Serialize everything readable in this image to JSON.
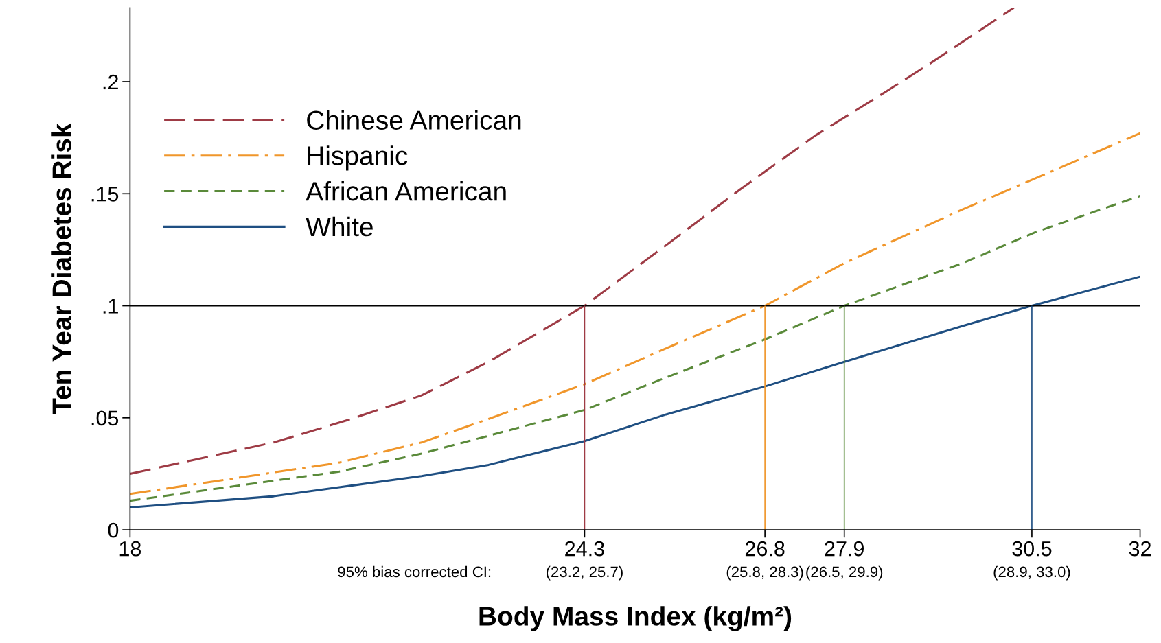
{
  "chart_data": {
    "type": "line",
    "xlabel": "Body Mass Index (kg/m²)",
    "ylabel": "Ten Year Diabetes Risk",
    "xlim": [
      18,
      32
    ],
    "xticks": [
      18,
      24.3,
      26.8,
      27.9,
      30.5,
      32
    ],
    "ylim": [
      0,
      0.233
    ],
    "yticks": [
      0,
      {
        "value": 0.05,
        "label": ".05"
      },
      {
        "value": 0.1,
        "label": ".1"
      },
      {
        "value": 0.15,
        "label": ".15"
      },
      {
        "value": 0.2,
        "label": ".2"
      }
    ],
    "grid": false,
    "legend": "top left",
    "marker": "none",
    "series": [
      {
        "name": "Chinese American",
        "color": "#9e3b45",
        "line_style": "longdash",
        "x": [
          18,
          19.99,
          21.02,
          22.04,
          22.97,
          24.3,
          25.43,
          26.46,
          27.5,
          28.5,
          29.13,
          30.25
        ],
        "values": [
          0.025,
          0.039,
          0.049,
          0.06,
          0.075,
          0.1,
          0.127,
          0.152,
          0.176,
          0.196,
          0.209,
          0.233
        ]
      },
      {
        "name": "Hispanic",
        "color": "#f0962b",
        "line_style": "dashdot",
        "x": [
          18,
          20.9,
          22.04,
          22.97,
          24.3,
          25.43,
          26.8,
          27.9,
          29.54,
          30.56,
          32
        ],
        "values": [
          0.016,
          0.03,
          0.039,
          0.0495,
          0.065,
          0.081,
          0.1,
          0.119,
          0.143,
          0.157,
          0.177
        ]
      },
      {
        "name": "African American",
        "color": "#5a8a3a",
        "line_style": "dashed",
        "x": [
          18,
          20.9,
          22.04,
          22.97,
          24.3,
          25.43,
          26.8,
          27.9,
          29.54,
          30.56,
          32
        ],
        "values": [
          0.013,
          0.026,
          0.034,
          0.042,
          0.0535,
          0.068,
          0.085,
          0.1,
          0.119,
          0.133,
          0.149
        ]
      },
      {
        "name": "White",
        "color": "#1f4f82",
        "line_style": "solid",
        "x": [
          18,
          19.99,
          20.9,
          22.04,
          22.97,
          24.3,
          25.43,
          26.8,
          27.9,
          29.54,
          30.5,
          32
        ],
        "values": [
          0.01,
          0.015,
          0.019,
          0.024,
          0.029,
          0.0396,
          0.0515,
          0.064,
          0.075,
          0.091,
          0.1,
          0.113
        ]
      }
    ],
    "ref_lines": [
      {
        "axis": "y",
        "value": 0.1,
        "color": "#000000"
      },
      {
        "axis": "x",
        "value": 24.3,
        "color": "#9e3b45"
      },
      {
        "axis": "x",
        "value": 26.8,
        "color": "#f0962b"
      },
      {
        "axis": "x",
        "value": 27.9,
        "color": "#5a8a3a"
      },
      {
        "axis": "x",
        "value": 30.5,
        "color": "#1f4f82"
      }
    ],
    "annotations": [
      "95% bias corrected CI:",
      "(23.2, 25.7)",
      "(25.8, 28.3)",
      "(26.5, 29.9)",
      "(28.9, 33.0)"
    ]
  }
}
